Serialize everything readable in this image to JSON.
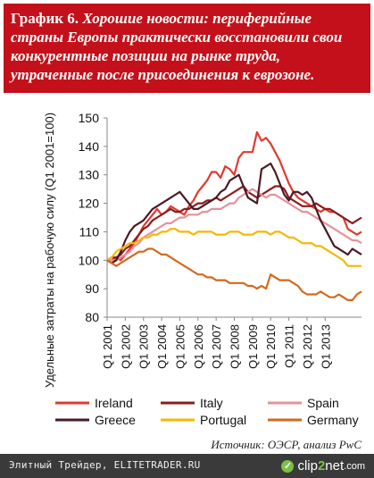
{
  "header": {
    "label": "График 6.",
    "text": "Хорошие новости: периферийные страны Европы практически восстановили свои конкурентные позиции на рынке труда, утраченные после присоединения к еврозоне."
  },
  "source": "Источник: ОЭСР, анализ PwC",
  "footer": {
    "caption": "Элитный Трейдер, ELITETRADER.RU",
    "logo_prefix": "clip",
    "logo_two": "2",
    "logo_suffix": "net",
    "logo_tld": ".com"
  },
  "colors": {
    "header_bg": "#c4101a",
    "Ireland": "#e03a2f",
    "Italy": "#8a1c1f",
    "Spain": "#e8909a",
    "Greece": "#4a1a24",
    "Portugal": "#f5b800",
    "Germany": "#d2691e"
  },
  "chart_data": {
    "type": "line",
    "ylabel": "Удельные затраты на рабочую силу (Q1 2001=100)",
    "ylim": [
      80,
      150
    ],
    "yticks": [
      80,
      90,
      100,
      110,
      120,
      130,
      140,
      150
    ],
    "xtick_labels": [
      "Q1 2001",
      "Q1 2002",
      "Q1 2003",
      "Q1 2004",
      "Q1 2005",
      "Q1 2006",
      "Q1 2007",
      "Q1 2008",
      "Q1 2009",
      "Q1 2010",
      "Q1 2011",
      "Q1 2012",
      "Q1 2013"
    ],
    "x_start": "Q1 2001",
    "x_step": "quarter",
    "legend_position": "bottom",
    "grid": false,
    "series": [
      {
        "name": "Ireland",
        "values": [
          100,
          100,
          101,
          100,
          102,
          104,
          106,
          109,
          112,
          114,
          116,
          118,
          116,
          117,
          119,
          118,
          117,
          116,
          119,
          121,
          124,
          126,
          128,
          131,
          131,
          129,
          133,
          132,
          130,
          136,
          138,
          138,
          138,
          145,
          142,
          143,
          141,
          138,
          135,
          131,
          127,
          124,
          122,
          121,
          120,
          119,
          118,
          117,
          118,
          117,
          117,
          116,
          115,
          111,
          110,
          109,
          110
        ]
      },
      {
        "name": "Italy",
        "values": [
          100,
          101,
          101,
          102,
          104,
          105,
          107,
          109,
          111,
          112,
          114,
          115,
          116,
          117,
          118,
          117,
          117,
          118,
          118,
          119,
          120,
          120,
          121,
          121,
          122,
          121,
          122,
          123,
          124,
          125,
          126,
          124,
          123,
          122,
          123,
          124,
          125,
          126,
          126,
          125,
          122,
          121,
          120,
          119,
          119,
          119,
          120,
          119,
          118,
          118,
          117,
          116,
          115,
          114,
          113,
          114,
          115
        ]
      },
      {
        "name": "Spain",
        "values": [
          100,
          100,
          100,
          101,
          102,
          103,
          105,
          106,
          108,
          109,
          110,
          111,
          112,
          113,
          113,
          114,
          115,
          115,
          116,
          116,
          116,
          117,
          117,
          118,
          118,
          118,
          119,
          120,
          120,
          122,
          123,
          124,
          125,
          124,
          123,
          122,
          123,
          123,
          122,
          121,
          120,
          119,
          118,
          117,
          117,
          116,
          115,
          114,
          113,
          112,
          111,
          110,
          109,
          108,
          107,
          107,
          106
        ]
      },
      {
        "name": "Greece",
        "values": [
          100,
          99,
          100,
          103,
          107,
          110,
          112,
          113,
          114,
          116,
          118,
          119,
          120,
          121,
          122,
          123,
          124,
          122,
          120,
          118,
          118,
          119,
          120,
          121,
          122,
          124,
          125,
          128,
          129,
          130,
          126,
          122,
          121,
          120,
          132,
          133,
          134,
          131,
          127,
          123,
          121,
          124,
          124,
          123,
          124,
          122,
          118,
          114,
          111,
          108,
          105,
          104,
          103,
          102,
          104,
          103,
          102
        ]
      },
      {
        "name": "Portugal",
        "values": [
          100,
          101,
          103,
          104,
          105,
          106,
          106,
          107,
          108,
          108,
          109,
          109,
          110,
          110,
          111,
          111,
          110,
          110,
          110,
          109,
          110,
          110,
          110,
          110,
          109,
          109,
          109,
          110,
          110,
          110,
          109,
          109,
          109,
          110,
          110,
          110,
          109,
          110,
          110,
          109,
          108,
          108,
          107,
          106,
          106,
          106,
          105,
          105,
          104,
          103,
          102,
          101,
          100,
          98,
          98,
          98,
          98
        ]
      },
      {
        "name": "Germany",
        "values": [
          100,
          99,
          98,
          99,
          100,
          101,
          102,
          103,
          103,
          104,
          104,
          103,
          102,
          102,
          101,
          100,
          99,
          98,
          97,
          96,
          95,
          95,
          94,
          94,
          93,
          93,
          93,
          92,
          92,
          92,
          92,
          91,
          91,
          90,
          91,
          90,
          95,
          94,
          93,
          93,
          93,
          92,
          91,
          89,
          88,
          88,
          88,
          89,
          88,
          87,
          87,
          88,
          87,
          86,
          86,
          88,
          89
        ]
      }
    ]
  }
}
